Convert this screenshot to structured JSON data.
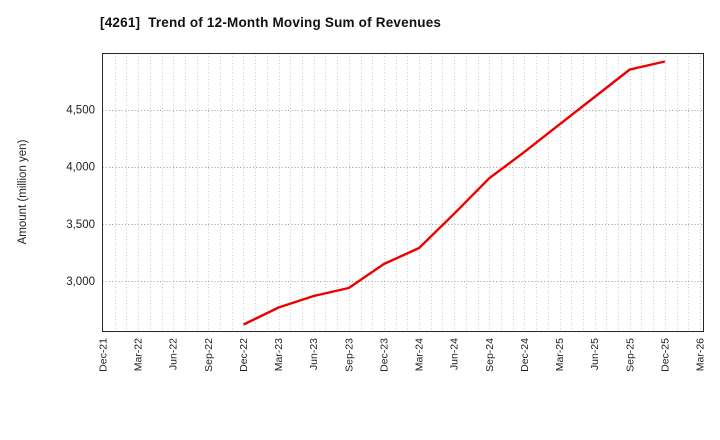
{
  "colors": {
    "background": "#ffffff",
    "line": "#ee0000",
    "frame": "#262626",
    "grid_vertical": "#c9c9c9",
    "grid_horizontal": "#9a9a9a",
    "text": "#222222",
    "title_text": "#111111"
  },
  "chart_data": {
    "type": "line",
    "title": "[4261]  Trend of 12-Month Moving Sum of Revenues",
    "xlabel": "",
    "ylabel": "Amount (million yen)",
    "legend_position": "none",
    "grid": "vertical dotted monthly lines; horizontal dotted lines at labeled y ticks",
    "ylim": [
      2560,
      4990
    ],
    "x_axis": {
      "start_label": "Dec-21",
      "end_label": "Mar-26",
      "months_total": 51,
      "tick_every_months": 3,
      "minor_grid_every_months": 1
    },
    "x_tick_labels": [
      "Dec-21",
      "Mar-22",
      "Jun-22",
      "Sep-22",
      "Dec-22",
      "Mar-23",
      "Jun-23",
      "Sep-23",
      "Dec-23",
      "Mar-24",
      "Jun-24",
      "Sep-24",
      "Dec-24",
      "Mar-25",
      "Jun-25",
      "Sep-25",
      "Dec-25",
      "Mar-26"
    ],
    "y_ticks": [
      {
        "value": 3000,
        "label": "3,000"
      },
      {
        "value": 3500,
        "label": "3,500"
      },
      {
        "value": 4000,
        "label": "4,000"
      },
      {
        "value": 4500,
        "label": "4,500"
      }
    ],
    "series": [
      {
        "name": "12-Month Moving Sum of Revenues",
        "color": "#ee0000",
        "points": [
          {
            "x": "Dec-22",
            "month_index": 12,
            "value": 2620
          },
          {
            "x": "Mar-23",
            "month_index": 15,
            "value": 2770
          },
          {
            "x": "Jun-23",
            "month_index": 18,
            "value": 2870
          },
          {
            "x": "Sep-23",
            "month_index": 21,
            "value": 2940
          },
          {
            "x": "Dec-23",
            "month_index": 24,
            "value": 3150
          },
          {
            "x": "Mar-24",
            "month_index": 27,
            "value": 3290
          },
          {
            "x": "Jun-24",
            "month_index": 30,
            "value": 3590
          },
          {
            "x": "Sep-24",
            "month_index": 33,
            "value": 3900
          },
          {
            "x": "Dec-24",
            "month_index": 36,
            "value": 4130
          },
          {
            "x": "Mar-25",
            "month_index": 39,
            "value": 4370
          },
          {
            "x": "Jun-25",
            "month_index": 42,
            "value": 4610
          },
          {
            "x": "Sep-25",
            "month_index": 45,
            "value": 4850
          },
          {
            "x": "Dec-25",
            "month_index": 48,
            "value": 4920
          }
        ]
      }
    ]
  }
}
